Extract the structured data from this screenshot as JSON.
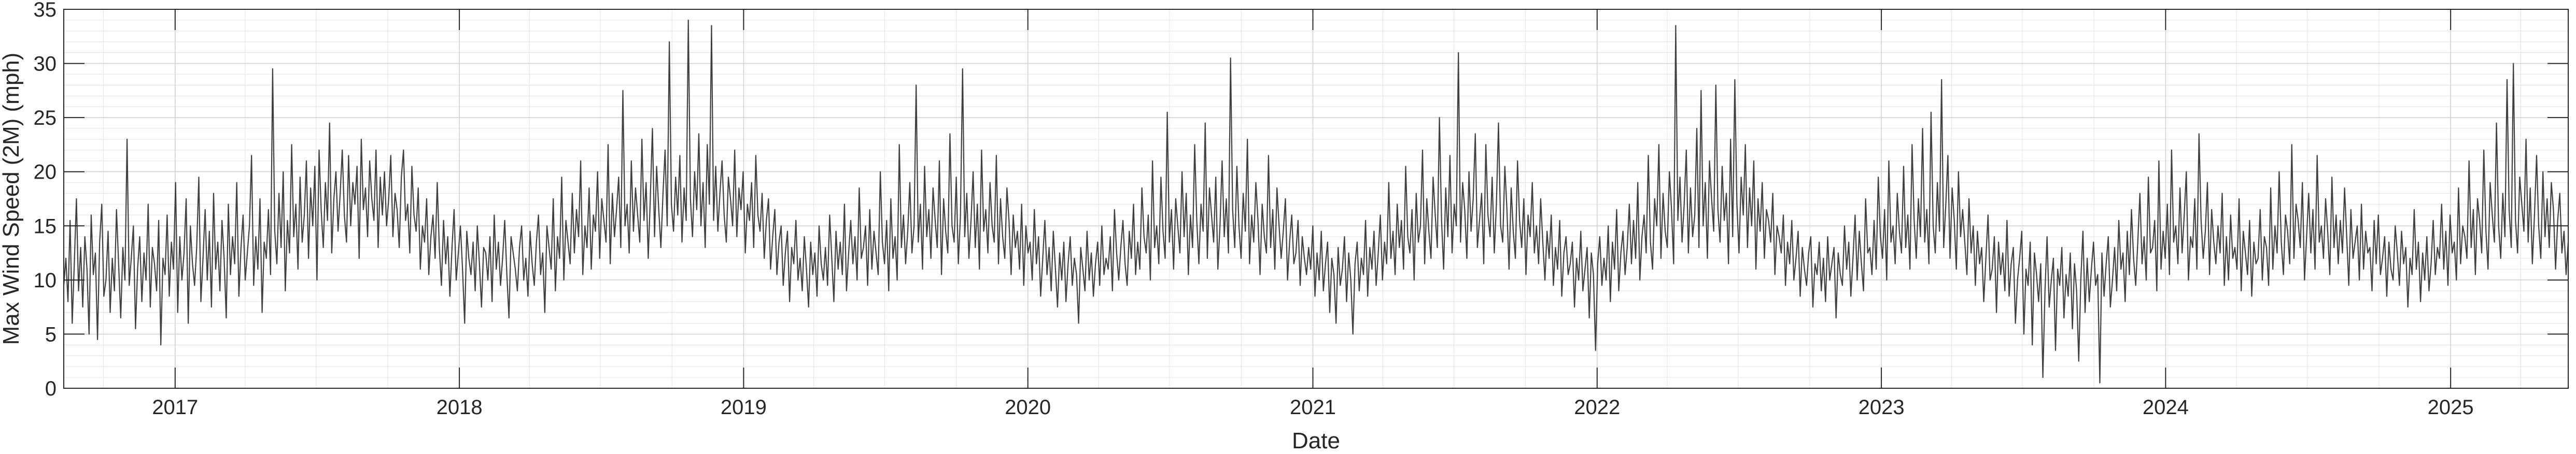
{
  "chart_data": {
    "type": "line",
    "title": "",
    "xlabel": "Date",
    "ylabel": "Max Wind Speed (2M) (mph)",
    "xlim": [
      "2016-08-11",
      "2025-06-01"
    ],
    "ylim": [
      0,
      35
    ],
    "x_ticks": [
      "2017",
      "2018",
      "2019",
      "2020",
      "2021",
      "2022",
      "2023",
      "2024",
      "2025"
    ],
    "y_ticks": [
      0,
      5,
      10,
      15,
      20,
      25,
      30,
      35
    ],
    "grid": true,
    "series": [
      {
        "name": "",
        "frequency": "daily",
        "start": "2016-08-11",
        "end": "2025-06-01",
        "values": [
          9.5,
          12.0,
          8.0,
          15.5,
          6.0,
          11.5,
          17.5,
          9.0,
          13.0,
          7.5,
          14.0,
          11.0,
          5.0,
          16.0,
          10.5,
          12.5,
          4.5,
          13.5,
          17.0,
          8.5,
          10.0,
          14.5,
          7.0,
          12.0,
          9.0,
          16.5,
          11.5,
          6.5,
          13.0,
          10.0,
          23.0,
          9.5,
          12.0,
          15.0,
          5.5,
          11.0,
          14.0,
          8.0,
          12.5,
          10.0,
          17.0,
          7.5,
          13.0,
          11.5,
          9.0,
          15.5,
          4.0,
          12.0,
          10.5,
          16.0,
          8.5,
          13.5,
          11.0,
          19.0,
          7.0,
          14.0,
          10.0,
          12.5,
          17.5,
          6.0,
          15.0,
          11.5,
          9.5,
          13.0,
          19.5,
          8.0,
          12.0,
          16.5,
          10.0,
          14.5,
          7.5,
          18.0,
          11.0,
          13.5,
          9.0,
          15.5,
          12.0,
          6.5,
          17.0,
          10.5,
          14.0,
          11.5,
          19.0,
          8.5,
          13.0,
          16.0,
          10.0,
          12.5,
          15.0,
          21.5,
          9.5,
          14.0,
          11.0,
          17.5,
          7.0,
          13.5,
          12.0,
          16.5,
          10.5,
          29.5,
          14.5,
          11.5,
          18.0,
          13.0,
          20.0,
          9.0,
          15.5,
          12.5,
          22.5,
          14.0,
          17.0,
          11.0,
          19.5,
          13.5,
          16.0,
          21.0,
          12.0,
          18.5,
          15.0,
          20.5,
          10.0,
          22.0,
          16.5,
          13.0,
          19.0,
          15.5,
          24.5,
          12.5,
          17.5,
          20.0,
          14.5,
          18.0,
          22.0,
          16.0,
          13.5,
          21.5,
          15.0,
          19.0,
          17.0,
          20.5,
          12.0,
          23.0,
          16.5,
          18.5,
          14.0,
          21.0,
          17.5,
          15.5,
          22.0,
          13.0,
          19.5,
          16.0,
          20.0,
          15.0,
          17.5,
          21.5,
          14.0,
          18.0,
          16.5,
          13.0,
          19.5,
          22.0,
          15.5,
          17.0,
          12.5,
          20.5,
          16.0,
          14.5,
          18.5,
          11.0,
          15.0,
          13.5,
          17.5,
          10.5,
          14.0,
          16.0,
          12.0,
          19.0,
          13.0,
          9.5,
          15.5,
          11.5,
          14.0,
          8.5,
          13.0,
          16.5,
          10.0,
          12.5,
          15.0,
          11.0,
          6.0,
          14.5,
          12.0,
          10.5,
          13.5,
          9.0,
          15.0,
          11.5,
          7.5,
          13.0,
          12.5,
          10.0,
          14.0,
          8.0,
          16.0,
          11.0,
          13.5,
          9.5,
          12.0,
          15.5,
          10.5,
          6.5,
          14.0,
          12.5,
          11.0,
          9.0,
          13.0,
          15.0,
          10.0,
          12.0,
          8.5,
          14.5,
          11.5,
          9.5,
          13.5,
          16.0,
          10.5,
          12.5,
          7.0,
          15.0,
          13.0,
          11.0,
          17.5,
          9.0,
          14.0,
          12.0,
          19.5,
          10.0,
          15.5,
          13.5,
          11.5,
          18.0,
          12.5,
          16.5,
          14.0,
          21.0,
          10.5,
          15.0,
          13.0,
          18.5,
          11.0,
          16.0,
          14.5,
          20.0,
          12.0,
          17.5,
          15.5,
          13.5,
          22.5,
          11.5,
          18.0,
          14.0,
          16.5,
          19.5,
          13.0,
          27.5,
          15.0,
          17.0,
          12.5,
          21.0,
          14.5,
          18.5,
          16.0,
          13.5,
          23.0,
          15.5,
          19.0,
          12.0,
          17.5,
          24.0,
          14.0,
          20.5,
          16.5,
          13.0,
          18.0,
          22.0,
          15.0,
          32.0,
          17.0,
          14.5,
          19.5,
          16.0,
          21.5,
          13.5,
          18.5,
          15.5,
          34.0,
          17.5,
          14.0,
          20.0,
          16.5,
          23.5,
          15.0,
          19.0,
          13.0,
          22.5,
          17.0,
          33.5,
          15.5,
          20.5,
          14.5,
          18.0,
          21.0,
          16.0,
          13.5,
          19.5,
          17.5,
          15.0,
          22.0,
          14.0,
          18.5,
          16.5,
          20.0,
          12.5,
          17.0,
          15.5,
          19.0,
          13.0,
          21.5,
          16.0,
          14.5,
          18.0,
          12.0,
          15.5,
          17.5,
          11.0,
          14.0,
          16.5,
          10.5,
          13.5,
          15.0,
          9.5,
          12.5,
          14.5,
          8.0,
          13.0,
          11.5,
          15.5,
          10.0,
          12.0,
          9.0,
          14.0,
          11.0,
          7.5,
          13.5,
          10.5,
          12.5,
          8.5,
          15.0,
          11.5,
          10.0,
          13.0,
          9.5,
          16.0,
          12.0,
          8.0,
          14.5,
          11.0,
          13.5,
          10.5,
          17.0,
          9.0,
          12.5,
          15.5,
          11.5,
          14.0,
          10.0,
          18.5,
          12.0,
          13.0,
          15.0,
          9.5,
          16.5,
          11.0,
          14.5,
          12.5,
          10.5,
          20.0,
          13.5,
          11.5,
          15.5,
          9.0,
          17.5,
          12.0,
          14.0,
          10.0,
          22.5,
          13.0,
          16.0,
          11.5,
          14.5,
          19.0,
          12.5,
          15.0,
          28.0,
          13.5,
          17.0,
          11.0,
          20.5,
          14.0,
          16.5,
          12.0,
          18.5,
          15.5,
          13.0,
          21.0,
          10.5,
          17.5,
          14.5,
          12.5,
          23.5,
          15.0,
          13.5,
          19.5,
          11.5,
          16.0,
          29.5,
          14.0,
          18.0,
          12.0,
          15.5,
          20.0,
          13.0,
          17.0,
          11.0,
          22.0,
          14.5,
          16.5,
          12.5,
          19.0,
          15.0,
          13.5,
          21.5,
          11.5,
          17.5,
          14.0,
          12.0,
          18.5,
          15.5,
          10.5,
          16.0,
          13.0,
          14.5,
          11.0,
          17.0,
          9.5,
          15.0,
          12.5,
          13.5,
          10.0,
          16.5,
          11.5,
          14.0,
          8.5,
          12.0,
          15.5,
          10.5,
          13.0,
          9.0,
          14.5,
          11.0,
          7.5,
          12.5,
          10.0,
          13.5,
          8.0,
          11.5,
          14.0,
          9.5,
          12.0,
          10.5,
          6.0,
          13.0,
          11.0,
          9.0,
          14.5,
          10.0,
          12.5,
          8.5,
          11.5,
          13.5,
          9.5,
          15.0,
          10.5,
          12.0,
          11.0,
          14.0,
          9.0,
          16.5,
          12.5,
          10.0,
          13.0,
          15.5,
          11.5,
          9.5,
          14.5,
          12.0,
          17.0,
          10.5,
          13.5,
          11.0,
          18.5,
          14.0,
          12.5,
          16.0,
          10.0,
          21.0,
          13.0,
          15.0,
          11.5,
          19.5,
          14.5,
          12.0,
          25.5,
          13.5,
          16.5,
          11.0,
          17.5,
          15.0,
          12.5,
          20.0,
          14.0,
          18.0,
          10.5,
          16.0,
          13.0,
          22.5,
          15.5,
          11.5,
          17.0,
          14.5,
          24.5,
          12.0,
          18.5,
          16.0,
          13.5,
          19.5,
          11.0,
          15.0,
          21.0,
          14.0,
          17.5,
          12.5,
          30.5,
          16.5,
          13.0,
          20.5,
          15.0,
          12.0,
          18.0,
          14.5,
          23.0,
          11.5,
          16.0,
          13.5,
          19.0,
          15.5,
          10.5,
          17.0,
          14.0,
          12.5,
          21.5,
          13.0,
          16.5,
          11.0,
          18.5,
          15.0,
          12.0,
          14.5,
          17.5,
          10.0,
          13.5,
          16.0,
          11.5,
          12.5,
          15.5,
          9.5,
          14.0,
          12.0,
          10.5,
          13.0,
          11.0,
          15.0,
          8.5,
          12.5,
          10.0,
          14.5,
          9.0,
          11.5,
          13.5,
          7.0,
          12.0,
          10.5,
          6.0,
          13.0,
          9.5,
          11.0,
          14.0,
          8.0,
          12.5,
          10.0,
          5.0,
          11.5,
          13.5,
          9.0,
          12.0,
          10.5,
          15.5,
          8.5,
          13.0,
          11.0,
          14.5,
          9.5,
          12.5,
          16.0,
          10.0,
          13.5,
          11.5,
          19.0,
          12.0,
          14.5,
          10.5,
          17.0,
          13.0,
          15.5,
          11.0,
          20.5,
          14.0,
          12.5,
          16.5,
          10.0,
          18.0,
          13.5,
          15.0,
          22.0,
          11.5,
          17.5,
          14.5,
          12.0,
          19.5,
          16.0,
          13.0,
          25.0,
          15.5,
          11.0,
          18.5,
          14.0,
          21.5,
          12.5,
          17.0,
          15.0,
          31.0,
          13.5,
          19.0,
          16.5,
          12.0,
          20.0,
          14.5,
          17.5,
          23.5,
          13.0,
          15.5,
          18.0,
          11.5,
          22.5,
          16.0,
          14.0,
          19.5,
          12.5,
          17.0,
          24.5,
          15.0,
          13.5,
          20.5,
          16.5,
          11.0,
          18.5,
          14.5,
          12.0,
          21.0,
          15.5,
          13.0,
          17.5,
          10.5,
          16.0,
          14.0,
          19.0,
          12.5,
          15.0,
          11.5,
          17.5,
          13.5,
          10.0,
          14.5,
          12.0,
          16.0,
          9.5,
          13.0,
          11.0,
          15.5,
          8.5,
          12.5,
          14.0,
          10.5,
          11.5,
          13.5,
          7.5,
          12.0,
          10.0,
          14.5,
          9.0,
          11.0,
          13.0,
          6.5,
          12.5,
          10.5,
          3.5,
          11.5,
          14.0,
          9.5,
          12.0,
          10.0,
          15.0,
          8.0,
          13.5,
          11.0,
          16.5,
          9.0,
          12.5,
          14.5,
          10.5,
          13.0,
          17.0,
          11.5,
          15.5,
          12.0,
          19.0,
          10.0,
          14.0,
          16.0,
          12.5,
          21.5,
          13.5,
          11.0,
          17.5,
          15.0,
          22.5,
          12.0,
          18.0,
          14.5,
          13.0,
          20.0,
          16.5,
          11.5,
          33.5,
          15.5,
          19.5,
          13.5,
          17.0,
          22.0,
          12.5,
          18.5,
          14.0,
          16.0,
          24.0,
          13.0,
          27.5,
          15.0,
          19.0,
          12.0,
          21.0,
          17.5,
          14.5,
          28.0,
          16.5,
          13.5,
          20.5,
          15.5,
          18.0,
          11.5,
          23.0,
          14.0,
          28.5,
          17.0,
          12.5,
          19.5,
          16.0,
          22.5,
          13.0,
          18.5,
          15.0,
          21.0,
          11.0,
          17.5,
          14.5,
          19.0,
          12.0,
          16.5,
          15.5,
          13.5,
          18.0,
          10.5,
          15.0,
          14.0,
          12.5,
          16.0,
          9.5,
          13.5,
          11.5,
          15.5,
          10.0,
          12.0,
          14.5,
          8.5,
          13.0,
          11.0,
          9.5,
          12.5,
          14.0,
          7.5,
          11.5,
          10.5,
          13.5,
          9.0,
          12.0,
          8.0,
          14.0,
          10.0,
          11.5,
          13.0,
          6.5,
          12.5,
          10.5,
          9.5,
          15.0,
          11.0,
          13.5,
          8.5,
          12.0,
          16.0,
          10.0,
          14.5,
          11.5,
          9.0,
          17.5,
          12.5,
          13.0,
          10.5,
          15.5,
          11.0,
          19.5,
          14.0,
          12.0,
          16.5,
          10.0,
          21.0,
          13.5,
          15.0,
          11.5,
          18.0,
          14.5,
          12.5,
          20.5,
          13.0,
          16.0,
          11.0,
          22.5,
          15.5,
          12.0,
          17.5,
          14.0,
          24.0,
          13.5,
          16.5,
          11.5,
          25.5,
          15.0,
          12.5,
          19.0,
          14.5,
          28.5,
          13.0,
          17.0,
          21.5,
          12.0,
          18.5,
          15.5,
          11.0,
          20.0,
          14.0,
          16.5,
          13.5,
          10.5,
          17.5,
          12.5,
          15.0,
          9.5,
          14.5,
          11.5,
          13.0,
          8.0,
          12.0,
          16.0,
          10.0,
          11.0,
          14.0,
          7.0,
          13.5,
          10.5,
          12.5,
          9.0,
          15.5,
          8.5,
          11.5,
          13.0,
          6.0,
          10.0,
          12.0,
          14.5,
          5.0,
          11.0,
          9.5,
          13.5,
          4.0,
          12.5,
          10.5,
          8.0,
          11.5,
          1.0,
          9.0,
          14.0,
          7.5,
          10.0,
          12.0,
          3.5,
          11.0,
          9.5,
          13.0,
          6.5,
          10.5,
          8.5,
          12.5,
          5.5,
          11.5,
          9.0,
          2.5,
          10.0,
          14.5,
          7.0,
          12.0,
          8.0,
          11.0,
          13.5,
          9.5,
          10.5,
          0.5,
          12.5,
          8.5,
          11.5,
          14.0,
          7.5,
          10.0,
          13.0,
          9.0,
          15.5,
          11.0,
          12.5,
          8.0,
          14.5,
          10.5,
          16.5,
          12.0,
          9.5,
          13.5,
          18.0,
          11.5,
          14.0,
          10.0,
          19.5,
          12.5,
          13.0,
          15.5,
          9.0,
          21.0,
          11.0,
          14.5,
          12.0,
          17.0,
          10.5,
          22.0,
          13.5,
          15.0,
          11.5,
          18.5,
          12.5,
          16.0,
          20.0,
          10.0,
          14.0,
          13.0,
          17.5,
          11.0,
          23.5,
          15.5,
          12.0,
          14.5,
          19.0,
          10.5,
          16.5,
          13.5,
          11.5,
          15.0,
          12.5,
          18.0,
          9.5,
          14.0,
          10.0,
          16.0,
          12.0,
          13.0,
          11.0,
          17.5,
          9.0,
          14.5,
          12.5,
          10.5,
          15.5,
          8.5,
          13.5,
          11.5,
          12.0,
          16.5,
          10.0,
          14.0,
          13.0,
          9.5,
          18.5,
          11.0,
          15.0,
          12.5,
          20.0,
          13.5,
          10.5,
          16.0,
          14.5,
          11.5,
          22.5,
          12.0,
          17.0,
          15.5,
          13.0,
          19.0,
          10.0,
          14.0,
          18.0,
          12.5,
          16.5,
          11.0,
          21.5,
          13.5,
          15.0,
          12.0,
          17.5,
          14.5,
          10.5,
          19.5,
          13.0,
          16.0,
          11.5,
          15.5,
          12.5,
          18.5,
          14.0,
          9.5,
          16.5,
          12.0,
          13.5,
          15.0,
          10.0,
          17.0,
          11.0,
          14.5,
          12.5,
          13.0,
          9.0,
          15.5,
          11.5,
          16.0,
          10.5,
          12.0,
          14.0,
          8.5,
          13.5,
          11.0,
          10.0,
          15.0,
          12.5,
          9.5,
          14.5,
          11.5,
          13.0,
          7.5,
          12.0,
          10.5,
          16.5,
          11.0,
          13.5,
          8.0,
          12.5,
          10.0,
          14.0,
          9.0,
          11.5,
          15.5,
          10.5,
          13.0,
          12.0,
          17.0,
          11.0,
          14.5,
          9.5,
          16.0,
          12.5,
          13.5,
          10.0,
          18.5,
          11.5,
          15.0,
          14.0,
          12.0,
          21.0,
          13.0,
          16.5,
          10.5,
          17.5,
          15.5,
          12.5,
          22.0,
          14.5,
          11.0,
          19.0,
          16.0,
          13.5,
          24.5,
          15.0,
          12.0,
          18.0,
          14.0,
          28.5,
          16.5,
          13.0,
          30.0,
          15.5,
          12.5,
          19.5,
          17.0,
          14.5,
          23.0,
          13.5,
          18.5,
          11.5,
          16.0,
          21.5,
          15.0,
          12.0,
          20.0,
          14.0,
          17.5,
          13.0,
          19.0,
          16.5,
          11.0,
          15.5,
          18.0,
          12.5,
          14.5,
          10.5,
          13.5
        ]
      }
    ]
  }
}
